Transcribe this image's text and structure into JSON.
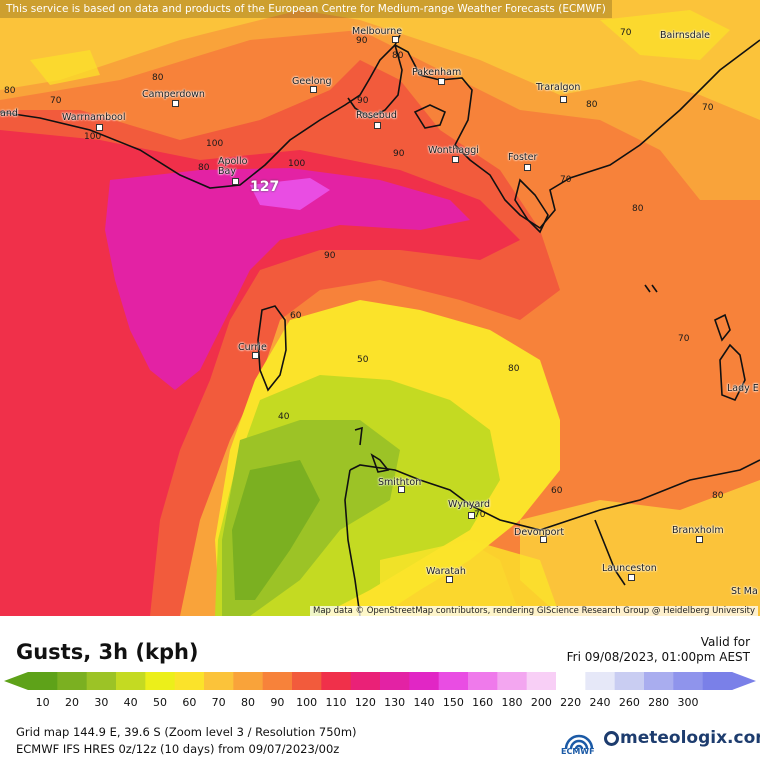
{
  "disclaimer": "This service is based on data and products of the European Centre for Medium-range Weather Forecasts (ECMWF)",
  "attribution": "Map data © OpenStreetMap contributors, rendering GIScience Research Group @ Heidelberg University",
  "title": "Gusts, 3h (kph)",
  "valid_label": "Valid for",
  "valid_time": "Fri 09/08/2023, 01:00pm AEST",
  "grid_info": "Grid map 144.9 E, 39.6 S (Zoom level 3 / Resolution 750m)",
  "model_info": "ECMWF IFS HRES 0z/12z (10 days) from 09/07/2023/00z",
  "logos": {
    "ecmwf": "ECMWF",
    "meteologix": "meteologix.com"
  },
  "max_value": "127",
  "places": {
    "melbourne": "Melbourne",
    "bairnsdale": "Bairnsdale",
    "geelong": "Geelong",
    "camperdown": "Camperdown",
    "pakenham": "Pakenham",
    "traralgon": "Traralgon",
    "warrnambool": "Warrnambool",
    "land": "and",
    "rosebud": "Rosebud",
    "wonthaggi": "Wonthaggi",
    "foster": "Foster",
    "apollo_bay": "Apollo Bay",
    "currie": "Currie",
    "lady_barron": "Lady E",
    "smithton": "Smithton",
    "wynyard": "Wynyard",
    "devonport": "Devonport",
    "branxholm": "Branxholm",
    "waratah": "Waratah",
    "launceston": "Launceston",
    "st_marys": "St Ma"
  },
  "contour_labels": [
    "80",
    "70",
    "80",
    "70",
    "80",
    "90",
    "90",
    "100",
    "90",
    "70",
    "80",
    "70",
    "100",
    "80",
    "100",
    "90",
    "80",
    "60",
    "70",
    "80",
    "50",
    "40",
    "60",
    "70",
    "80",
    "70",
    "60",
    "80"
  ],
  "legend": {
    "ticks": [
      "10",
      "20",
      "30",
      "40",
      "50",
      "60",
      "70",
      "80",
      "90",
      "100",
      "110",
      "120",
      "130",
      "140",
      "150",
      "160",
      "180",
      "200",
      "220",
      "240",
      "260",
      "280",
      "300"
    ],
    "colors": [
      "#5ea219",
      "#7bb021",
      "#9cc326",
      "#c4da22",
      "#ecef1a",
      "#fbe32a",
      "#fbc33a",
      "#f9a33a",
      "#f7823a",
      "#f25b3c",
      "#f0304a",
      "#ea2177",
      "#e322a4",
      "#e126c5",
      "#e94de3",
      "#ef7aeb",
      "#f3a6f0",
      "#f8cff6",
      "#ffffff",
      "#e6e8f8",
      "#c9cdf2",
      "#a9adef",
      "#8f94ec",
      "#7a80e8"
    ]
  }
}
